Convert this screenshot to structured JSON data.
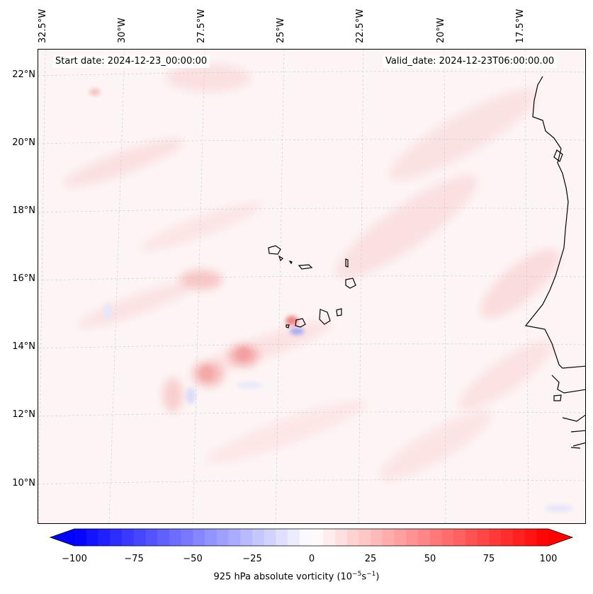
{
  "header": {
    "start_date": "Start date: 2024-12-23_00:00:00",
    "valid_date": "Valid_date: 2024-12-23T06:00:00.00"
  },
  "lon_labels": [
    "32.5°W",
    "30°W",
    "27.5°W",
    "25°W",
    "22.5°W",
    "20°W",
    "17.5°W"
  ],
  "lat_labels": [
    "22°N",
    "20°N",
    "18°N",
    "16°N",
    "14°N",
    "12°N",
    "10°N"
  ],
  "colorbar": {
    "ticks": [
      "−100",
      "−75",
      "−50",
      "−25",
      "0",
      "25",
      "50",
      "75",
      "100"
    ],
    "label": "925 hPa absolute vorticity (10",
    "label_exp1": "−5",
    "label_mid": "s",
    "label_exp2": "−1",
    "label_end": ")",
    "min": -100,
    "max": 100,
    "colormap": "bwr",
    "extend": "both"
  },
  "colors": {
    "background_field": "#fdf5f5",
    "coastline": "#000000",
    "gridline": "#bbbbbb"
  }
}
